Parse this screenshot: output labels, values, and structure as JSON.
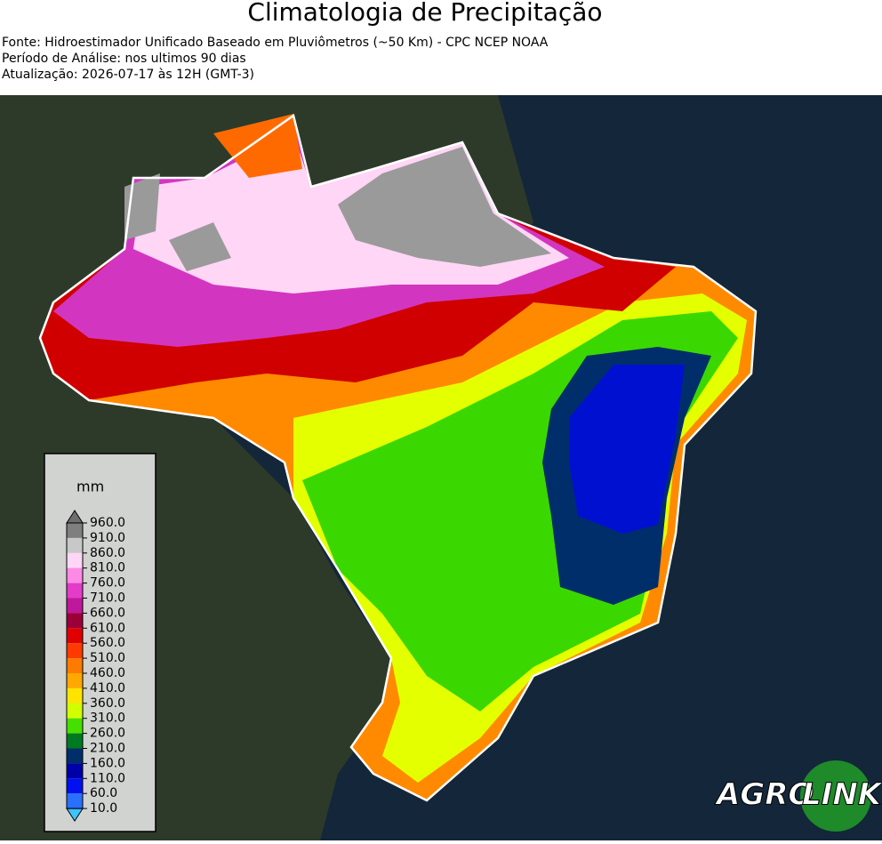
{
  "header": {
    "title": "Climatologia de Precipitação",
    "lines": [
      "Fonte: Hidroestimador Unificado Baseado em Pluviômetros (~50 Km) - CPC NCEP NOAA",
      "Período de Análise: nos ultimos 90 dias",
      "Atualização: 2026-07-17 às 12H (GMT-3)"
    ]
  },
  "legend": {
    "unit": "mm",
    "ticks": [
      "960.0",
      "910.0",
      "860.0",
      "810.0",
      "760.0",
      "710.0",
      "660.0",
      "610.0",
      "560.0",
      "510.0",
      "460.0",
      "410.0",
      "360.0",
      "310.0",
      "260.0",
      "210.0",
      "160.0",
      "110.0",
      "60.0",
      "10.0"
    ],
    "colors": [
      "#7f7f7f",
      "#c8c8c8",
      "#ffd6f5",
      "#ff8ae6",
      "#e33cc8",
      "#c0189a",
      "#9c0038",
      "#e00000",
      "#ff3a00",
      "#ff7a00",
      "#ffa800",
      "#ffe400",
      "#d2ff00",
      "#46e000",
      "#007a20",
      "#002e6a",
      "#0000a8",
      "#0010f0",
      "#2a70ff"
    ],
    "over_color": "#6e6e6e",
    "under_color": "#3cc4ff"
  },
  "logo": {
    "left": "AGRO",
    "right": "LINK"
  }
}
